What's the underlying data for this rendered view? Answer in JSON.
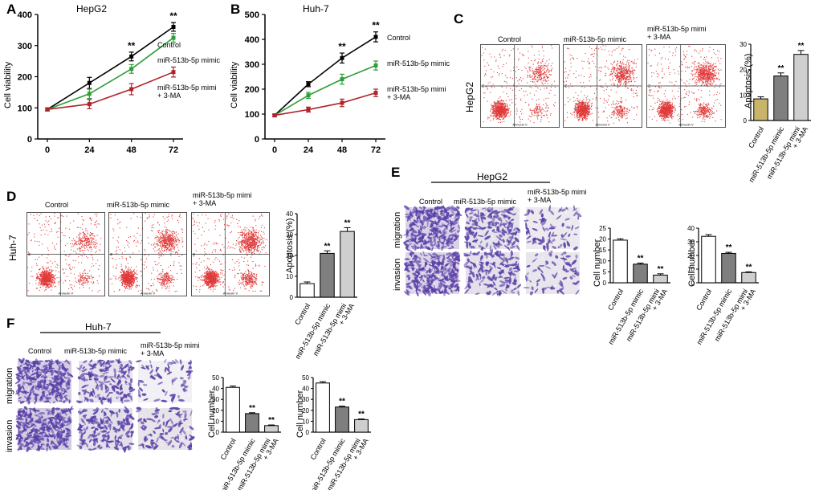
{
  "panels": {
    "A": {
      "letter": "A",
      "title": "HepG2",
      "ylabel": "Cell viability"
    },
    "B": {
      "letter": "B",
      "title": "Huh-7",
      "ylabel": "Cell viability"
    },
    "C": {
      "letter": "C",
      "row_label": "HepG2",
      "ylabel": "Apoptosis (%)"
    },
    "D": {
      "letter": "D",
      "row_label": "Huh-7",
      "ylabel": "Apoptosis (%)"
    },
    "E": {
      "letter": "E",
      "header": "HepG2",
      "ylabel": "Cell number"
    },
    "F": {
      "letter": "F",
      "header": "Huh-7",
      "ylabel": "Cell number"
    }
  },
  "groups": {
    "control": "Control",
    "mimic": "miR-513b-5p mimic",
    "mimi_3ma_line1": "miR-513b-5p mimi",
    "mimi_3ma_line2": "+ 3-MA"
  },
  "rows": {
    "migration": "migration",
    "invasion": "invasion"
  },
  "flow_axis": {
    "x": "Annexin V",
    "y": "PI"
  },
  "sig": "**",
  "colors": {
    "control": "#000000",
    "mimic": "#2e9e3a",
    "mimi_3ma": "#b0232a",
    "dot": "#e03a3a",
    "bar_ctrl_C": "#c8b46a",
    "bar_mimic": "#7f7f7f",
    "bar_3ma": "#cfcfcf",
    "stain": "#5a3fa8"
  },
  "chart_data": [
    {
      "id": "A",
      "type": "line",
      "title": "HepG2",
      "xlabel": "",
      "ylabel": "Cell viability",
      "x": [
        0,
        24,
        48,
        72
      ],
      "ylim": [
        0,
        400
      ],
      "yticks": [
        0,
        100,
        200,
        300,
        400
      ],
      "series": [
        {
          "name": "Control",
          "values": [
            95,
            180,
            265,
            360
          ],
          "err": [
            4,
            18,
            14,
            14
          ]
        },
        {
          "name": "miR-513b-5p mimic",
          "values": [
            95,
            145,
            225,
            325
          ],
          "err": [
            4,
            15,
            14,
            14
          ]
        },
        {
          "name": "miR-513b-5p mimi + 3-MA",
          "values": [
            95,
            112,
            160,
            215
          ],
          "err": [
            4,
            15,
            18,
            16
          ]
        }
      ],
      "annotations": [
        {
          "x": 48,
          "text": "**"
        },
        {
          "x": 72,
          "text": "**"
        }
      ]
    },
    {
      "id": "B",
      "type": "line",
      "title": "Huh-7",
      "xlabel": "",
      "ylabel": "Cell viability",
      "x": [
        0,
        24,
        48,
        72
      ],
      "ylim": [
        0,
        500
      ],
      "yticks": [
        0,
        100,
        200,
        300,
        400,
        500
      ],
      "series": [
        {
          "name": "Control",
          "values": [
            95,
            220,
            325,
            410
          ],
          "err": [
            4,
            10,
            20,
            20
          ]
        },
        {
          "name": "miR-513b-5p mimic",
          "values": [
            95,
            175,
            240,
            295
          ],
          "err": [
            4,
            12,
            20,
            18
          ]
        },
        {
          "name": "miR-513b-5p mimi + 3-MA",
          "values": [
            95,
            118,
            145,
            185
          ],
          "err": [
            4,
            10,
            15,
            15
          ]
        }
      ],
      "annotations": [
        {
          "x": 48,
          "text": "**"
        },
        {
          "x": 72,
          "text": "**"
        }
      ]
    },
    {
      "id": "C",
      "type": "bar",
      "ylabel": "Apoptosis (%)",
      "ylim": [
        0,
        30
      ],
      "yticks": [
        0,
        10,
        20,
        30
      ],
      "categories": [
        "Control",
        "miR-513b-5p mimic",
        "miR-513b-5p mimi + 3-MA"
      ],
      "values": [
        8.5,
        17.5,
        26
      ],
      "err": [
        0.8,
        1.2,
        1.5
      ],
      "sig": [
        "",
        "**",
        "**"
      ]
    },
    {
      "id": "D",
      "type": "bar",
      "ylabel": "Apoptosis (%)",
      "ylim": [
        0,
        40
      ],
      "yticks": [
        0,
        10,
        20,
        30,
        40
      ],
      "categories": [
        "Control",
        "miR-513b-5p mimic",
        "miR-513b-5p mimi + 3-MA"
      ],
      "values": [
        6.5,
        21,
        31.5
      ],
      "err": [
        0.8,
        1.2,
        1.8
      ],
      "sig": [
        "",
        "**",
        "**"
      ]
    },
    {
      "id": "E1",
      "type": "bar",
      "ylabel": "Cell number",
      "ylim": [
        0,
        25
      ],
      "yticks": [
        0,
        5,
        10,
        15,
        20,
        25
      ],
      "categories": [
        "Control",
        "miR-513b-5p mimic",
        "miR-513b-5p mimi + 3-MA"
      ],
      "values": [
        19.5,
        8.5,
        3.5
      ],
      "err": [
        0.6,
        0.5,
        0.6
      ],
      "sig": [
        "",
        "**",
        "**"
      ]
    },
    {
      "id": "E2",
      "type": "bar",
      "ylabel": "Cell number",
      "ylim": [
        0,
        40
      ],
      "yticks": [
        0,
        10,
        20,
        30,
        40
      ],
      "categories": [
        "Control",
        "miR-513b-5p mimic",
        "miR-513b-5p mimi + 3-MA"
      ],
      "values": [
        34,
        21.5,
        7.5
      ],
      "err": [
        1.2,
        0.8,
        0.5
      ],
      "sig": [
        "",
        "**",
        "**"
      ]
    },
    {
      "id": "F1",
      "type": "bar",
      "ylabel": "Cell number",
      "ylim": [
        0,
        50
      ],
      "yticks": [
        0,
        10,
        20,
        30,
        40,
        50
      ],
      "categories": [
        "Control",
        "miR-513b-5p mimic",
        "miR-513b-5p mimi + 3-MA"
      ],
      "values": [
        41,
        17,
        6
      ],
      "err": [
        1.2,
        0.8,
        0.6
      ],
      "sig": [
        "",
        "**",
        "**"
      ]
    },
    {
      "id": "F2",
      "type": "bar",
      "ylabel": "Cell number",
      "ylim": [
        0,
        50
      ],
      "yticks": [
        0,
        10,
        20,
        30,
        40,
        50
      ],
      "categories": [
        "Control",
        "miR-513b-5p mimic",
        "miR-513b-5p mimi + 3-MA"
      ],
      "values": [
        45,
        23,
        11.5
      ],
      "err": [
        1.2,
        0.8,
        0.6
      ],
      "sig": [
        "",
        "**",
        "**"
      ]
    }
  ]
}
